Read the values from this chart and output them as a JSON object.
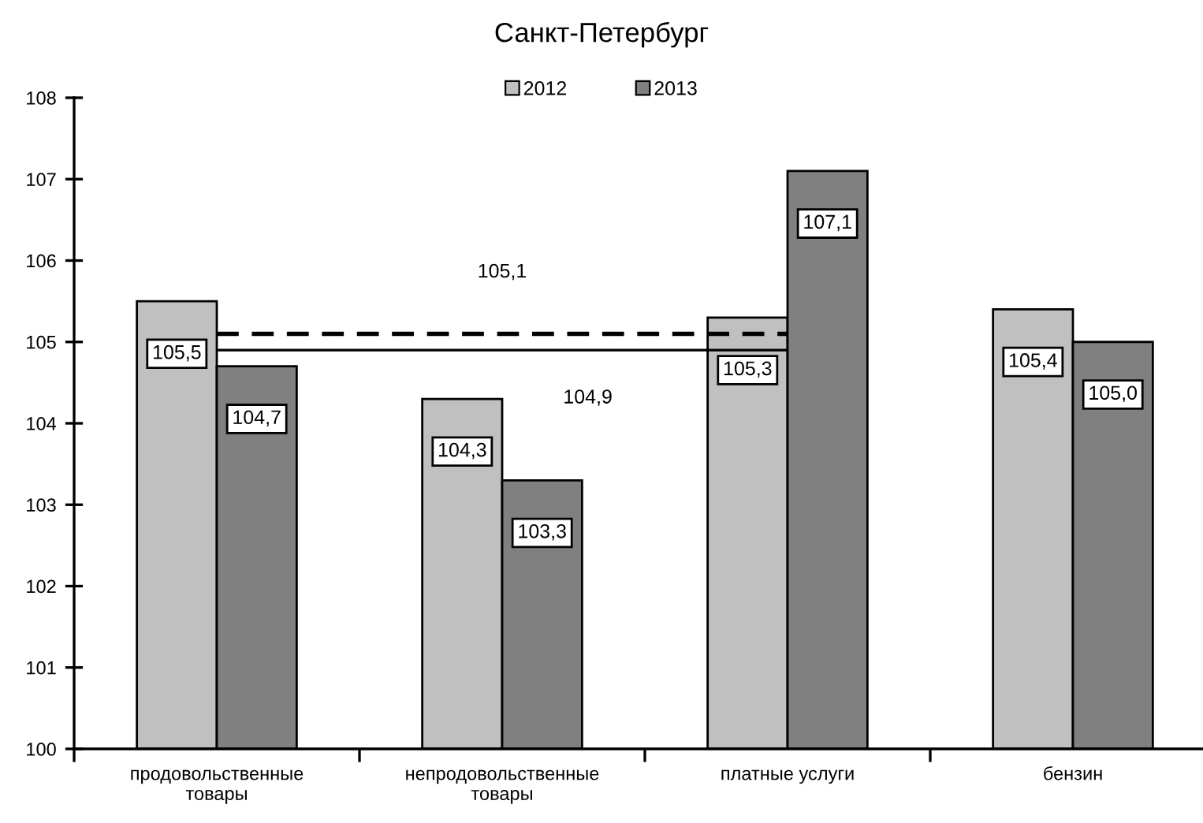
{
  "chart_data": {
    "type": "bar",
    "title": "Санкт-Петербург",
    "categories": [
      "продовольственные\nтовары",
      "непродовольственные\nтовары",
      "платные услуги",
      "бензин"
    ],
    "series": [
      {
        "name": "2012",
        "color": "#c0c0c0",
        "values": [
          105.5,
          104.3,
          105.3,
          105.4
        ],
        "value_labels": [
          "105,5",
          "104,3",
          "105,3",
          "105,4"
        ]
      },
      {
        "name": "2013",
        "color": "#808080",
        "values": [
          104.7,
          103.3,
          107.1,
          105.0
        ],
        "value_labels": [
          "104,7",
          "103,3",
          "107,1",
          "105,0"
        ]
      }
    ],
    "ylim": [
      100,
      108
    ],
    "yticks": [
      100,
      101,
      102,
      103,
      104,
      105,
      106,
      107,
      108
    ],
    "ref_lines": [
      {
        "axis": "y",
        "value": 105.1,
        "label": "105,1",
        "color": "#000000",
        "line_style": "dashed"
      },
      {
        "axis": "y",
        "value": 104.9,
        "label": "104,9",
        "color": "#000000",
        "line_style": "solid"
      }
    ],
    "legend": "top",
    "grid": false
  }
}
